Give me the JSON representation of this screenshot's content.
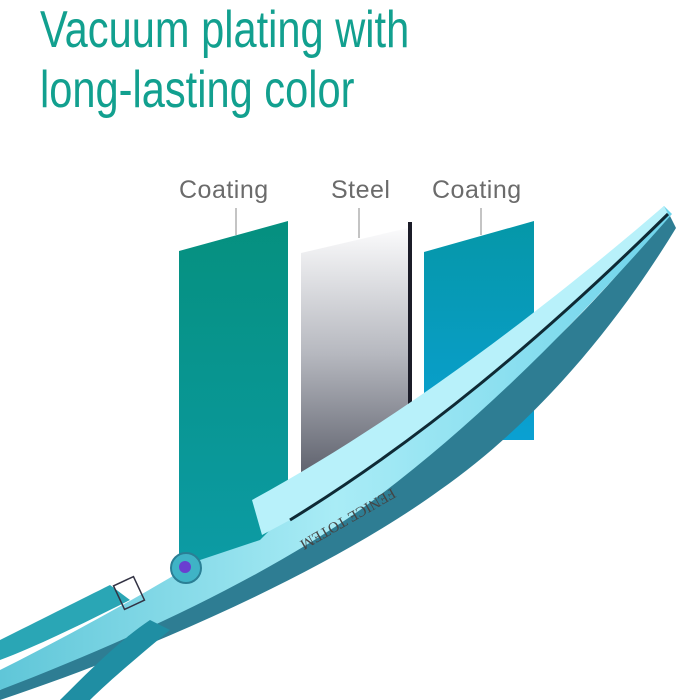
{
  "headline": {
    "line1": "Vacuum plating with",
    "line2": "long-lasting color"
  },
  "layers": [
    {
      "label": "Coating",
      "color": "#079687"
    },
    {
      "label": "Steel",
      "color": "#9fa1a8"
    },
    {
      "label": "Coating",
      "color": "#0a9dc0"
    }
  ],
  "brand_engraving": "FENICE TOTEM",
  "accent_color": "#12a08f"
}
